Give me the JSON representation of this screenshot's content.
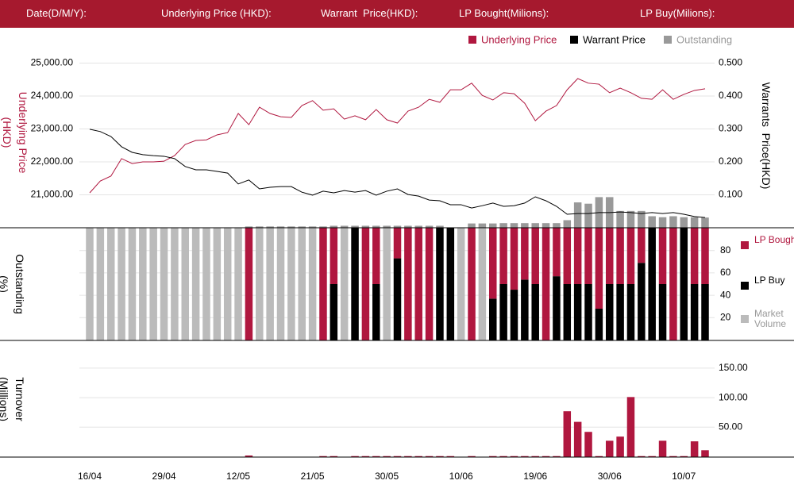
{
  "header": {
    "labels": [
      "Date(D/M/Y):",
      "Underlying Price (HKD):",
      "Warrant  Price(HKD):",
      "LP Bought(Milions):",
      "LP Buy(Milions):"
    ]
  },
  "chart_data": [
    {
      "type": "line",
      "ylabel": "Underlying Price (HKD)",
      "y2label": "Warrants  Price(HKD)",
      "ylim": [
        20000,
        26000
      ],
      "yticks": [
        {
          "value": 21000,
          "label": "21,000.00"
        },
        {
          "value": 22000,
          "label": "22,000.00"
        },
        {
          "value": 23000,
          "label": "23,000.00"
        },
        {
          "value": 24000,
          "label": "24,000.00"
        },
        {
          "value": 25000,
          "label": "25,000.00"
        }
      ],
      "y2lim": [
        0,
        0.6
      ],
      "y2ticks": [
        {
          "value": 0.1,
          "label": "0.100"
        },
        {
          "value": 0.2,
          "label": "0.200"
        },
        {
          "value": 0.3,
          "label": "0.300"
        },
        {
          "value": 0.4,
          "label": "0.400"
        },
        {
          "value": 0.5,
          "label": "0.500"
        }
      ],
      "grid": true,
      "series": [
        {
          "name": "Underlying Price",
          "color": "#b0173f",
          "axis": "y",
          "values": [
            21060,
            21420,
            21570,
            22100,
            21950,
            22000,
            22000,
            22020,
            22190,
            22530,
            22650,
            22670,
            22820,
            22890,
            23470,
            23130,
            23660,
            23470,
            23370,
            23350,
            23710,
            23860,
            23570,
            23610,
            23300,
            23400,
            23280,
            23590,
            23280,
            23180,
            23540,
            23660,
            23900,
            23810,
            24190,
            24190,
            24390,
            24020,
            23880,
            24100,
            24070,
            23780,
            23250,
            23540,
            23710,
            24190,
            24530,
            24390,
            24360,
            24100,
            24240,
            24100,
            23930,
            23900,
            24190,
            23900,
            24050,
            24170,
            24220
          ]
        },
        {
          "name": "Warrant  Price",
          "color": "#000000",
          "axis": "y2",
          "values": [
            0.299,
            0.292,
            0.277,
            0.246,
            0.229,
            0.222,
            0.219,
            0.217,
            0.21,
            0.186,
            0.176,
            0.176,
            0.171,
            0.166,
            0.133,
            0.145,
            0.118,
            0.123,
            0.125,
            0.125,
            0.108,
            0.099,
            0.111,
            0.106,
            0.113,
            0.108,
            0.113,
            0.099,
            0.111,
            0.118,
            0.101,
            0.096,
            0.084,
            0.082,
            0.07,
            0.07,
            0.06,
            0.067,
            0.075,
            0.065,
            0.067,
            0.075,
            0.094,
            0.082,
            0.065,
            0.041,
            0.043,
            0.043,
            0.046,
            0.046,
            0.048,
            0.046,
            0.043,
            0.046,
            0.043,
            0.046,
            0.041,
            0.034,
            0.031
          ]
        },
        {
          "name": "Outstanding",
          "color": "#999999",
          "axis": "y2",
          "type": "bar",
          "values": [
            0,
            0,
            0,
            0,
            0,
            0,
            0,
            0,
            0,
            0,
            0,
            0,
            0,
            0,
            0,
            0.004,
            0.004,
            0.004,
            0.004,
            0.004,
            0.004,
            0.004,
            0.004,
            0.006,
            0.006,
            0.006,
            0.006,
            0.006,
            0.006,
            0.006,
            0.006,
            0.006,
            0.006,
            0.006,
            0,
            0,
            0.013,
            0.013,
            0.013,
            0.014,
            0.014,
            0.014,
            0.014,
            0.014,
            0.014,
            0.023,
            0.077,
            0.073,
            0.093,
            0.093,
            0.051,
            0.051,
            0.051,
            0.035,
            0.032,
            0.035,
            0.032,
            0.032,
            0.031
          ]
        }
      ]
    },
    {
      "type": "bar",
      "stacked": true,
      "ylabel": "Outstanding (%)",
      "ylim": [
        0,
        100
      ],
      "yticks": [
        20,
        40,
        60,
        80
      ],
      "grid": true,
      "series": [
        {
          "name": "LP Bought",
          "color": "#b0173f",
          "values": [
            0,
            0,
            0,
            0,
            0,
            0,
            0,
            0,
            0,
            0,
            0,
            0,
            0,
            0,
            0,
            100,
            0,
            0,
            0,
            0,
            0,
            0,
            100,
            50,
            0,
            0,
            100,
            50,
            0,
            27,
            100,
            100,
            100,
            0,
            0,
            0,
            100,
            0,
            63,
            50,
            55,
            46,
            50,
            100,
            43,
            50,
            50,
            50,
            72,
            50,
            50,
            50,
            31,
            0,
            50,
            100,
            0,
            50,
            50
          ]
        },
        {
          "name": "LP Buy",
          "color": "#000000",
          "values": [
            0,
            0,
            0,
            0,
            0,
            0,
            0,
            0,
            0,
            0,
            0,
            0,
            0,
            0,
            0,
            0,
            0,
            0,
            0,
            0,
            0,
            0,
            0,
            50,
            0,
            100,
            0,
            50,
            0,
            73,
            0,
            0,
            0,
            100,
            100,
            0,
            0,
            0,
            37,
            50,
            45,
            54,
            50,
            0,
            57,
            50,
            50,
            50,
            28,
            50,
            50,
            50,
            69,
            100,
            50,
            0,
            100,
            50,
            50
          ]
        },
        {
          "name": "Market Volume",
          "color": "#bbbbbb",
          "values": [
            100,
            100,
            100,
            100,
            100,
            100,
            100,
            100,
            100,
            100,
            100,
            100,
            100,
            100,
            100,
            0,
            100,
            100,
            100,
            100,
            100,
            100,
            0,
            0,
            100,
            0,
            0,
            0,
            100,
            0,
            0,
            0,
            0,
            0,
            0,
            100,
            0,
            100,
            0,
            0,
            0,
            0,
            0,
            0,
            0,
            0,
            0,
            0,
            0,
            0,
            0,
            0,
            0,
            0,
            0,
            0,
            0,
            0,
            0
          ]
        }
      ]
    },
    {
      "type": "bar",
      "ylabel": "Turnover (Millions)",
      "color": "#b0173f",
      "ylim": [
        0,
        170
      ],
      "yticks": [
        {
          "value": 50,
          "label": "50.00"
        },
        {
          "value": 100,
          "label": "100.00"
        },
        {
          "value": 150,
          "label": "150.00"
        }
      ],
      "grid": true,
      "categories": [
        "16/04",
        null,
        null,
        null,
        null,
        null,
        null,
        "29/04",
        null,
        null,
        null,
        null,
        null,
        null,
        "12/05",
        null,
        null,
        null,
        null,
        null,
        null,
        "21/05",
        null,
        null,
        null,
        null,
        null,
        null,
        "30/05",
        null,
        null,
        null,
        null,
        null,
        null,
        "10/06",
        null,
        null,
        null,
        null,
        null,
        null,
        "19/06",
        null,
        null,
        null,
        null,
        null,
        null,
        "30/06",
        null,
        null,
        null,
        null,
        null,
        null,
        "10/07",
        null,
        null
      ],
      "values": [
        0,
        0,
        0,
        0,
        0,
        0,
        0,
        0,
        0,
        0,
        0,
        0,
        0,
        0,
        0,
        2,
        0,
        0,
        0,
        0,
        0,
        0,
        1,
        1,
        0,
        1,
        1,
        1,
        1,
        1,
        1,
        1,
        1,
        1,
        1,
        0,
        1,
        0,
        1,
        1,
        1,
        1,
        1,
        1,
        1,
        77,
        59,
        42,
        1,
        27,
        34,
        101,
        1,
        1,
        27,
        1,
        1,
        26,
        11
      ]
    }
  ]
}
